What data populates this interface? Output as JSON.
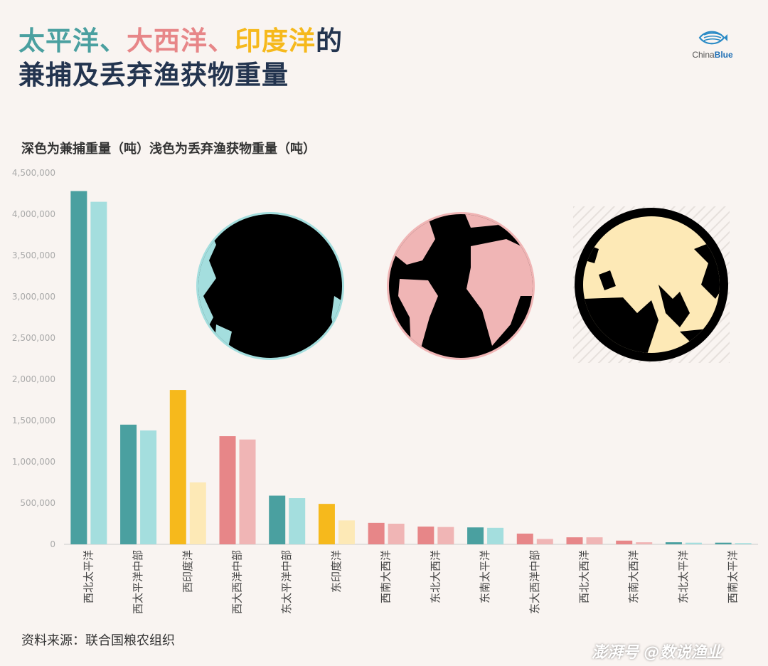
{
  "header": {
    "title_part1": "太平洋",
    "title_sep1": "、",
    "title_part2": "大西洋",
    "title_sep2": "、",
    "title_part3": "印度洋",
    "title_part4": "的",
    "title_line2": "兼捕及丢弃渔获物重量"
  },
  "logo": {
    "text_a": "China",
    "text_b": "Blue"
  },
  "footer": {
    "source": "资料来源：联合国粮农组织",
    "watermark": "澎湃号  @数说渔业"
  },
  "colors": {
    "pacific_dark": "#4aa0a0",
    "pacific_light": "#a4dede",
    "atlantic_dark": "#e78688",
    "atlantic_light": "#f0b5b5",
    "indian_dark": "#f6b91c",
    "indian_light": "#fde9b6"
  },
  "chart_data": {
    "type": "bar",
    "title": "深色为兼捕重量（吨）浅色为丢弃渔获物重量（吨）",
    "ylim": [
      0,
      4500000
    ],
    "yticks": [
      "0",
      "500,000",
      "1,000,000",
      "1,500,000",
      "2,000,000",
      "2,500,000",
      "3,000,000",
      "3,500,000",
      "4,000,000",
      "4,500,000"
    ],
    "ytick_values": [
      0,
      500000,
      1000000,
      1500000,
      2000000,
      2500000,
      3000000,
      3500000,
      4000000,
      4500000
    ],
    "categories": [
      "西北太平洋",
      "西太平洋中部",
      "西印度洋",
      "西大西洋中部",
      "东太平洋中部",
      "东印度洋",
      "西南大西洋",
      "东北大西洋",
      "东南太平洋",
      "东大西洋中部",
      "西北大西洋",
      "东南大西洋",
      "东北太平洋",
      "西南太平洋"
    ],
    "ocean": [
      "pacific",
      "pacific",
      "indian",
      "atlantic",
      "pacific",
      "indian",
      "atlantic",
      "atlantic",
      "pacific",
      "atlantic",
      "atlantic",
      "atlantic",
      "pacific",
      "pacific"
    ],
    "series": [
      {
        "values": [
          4280000,
          1450000,
          1870000,
          1310000,
          590000,
          490000,
          260000,
          215000,
          205000,
          130000,
          85000,
          45000,
          25000,
          20000
        ]
      },
      {
        "values": [
          4150000,
          1380000,
          750000,
          1270000,
          560000,
          290000,
          250000,
          210000,
          200000,
          65000,
          85000,
          25000,
          20000,
          15000
        ]
      }
    ],
    "grid": false
  }
}
